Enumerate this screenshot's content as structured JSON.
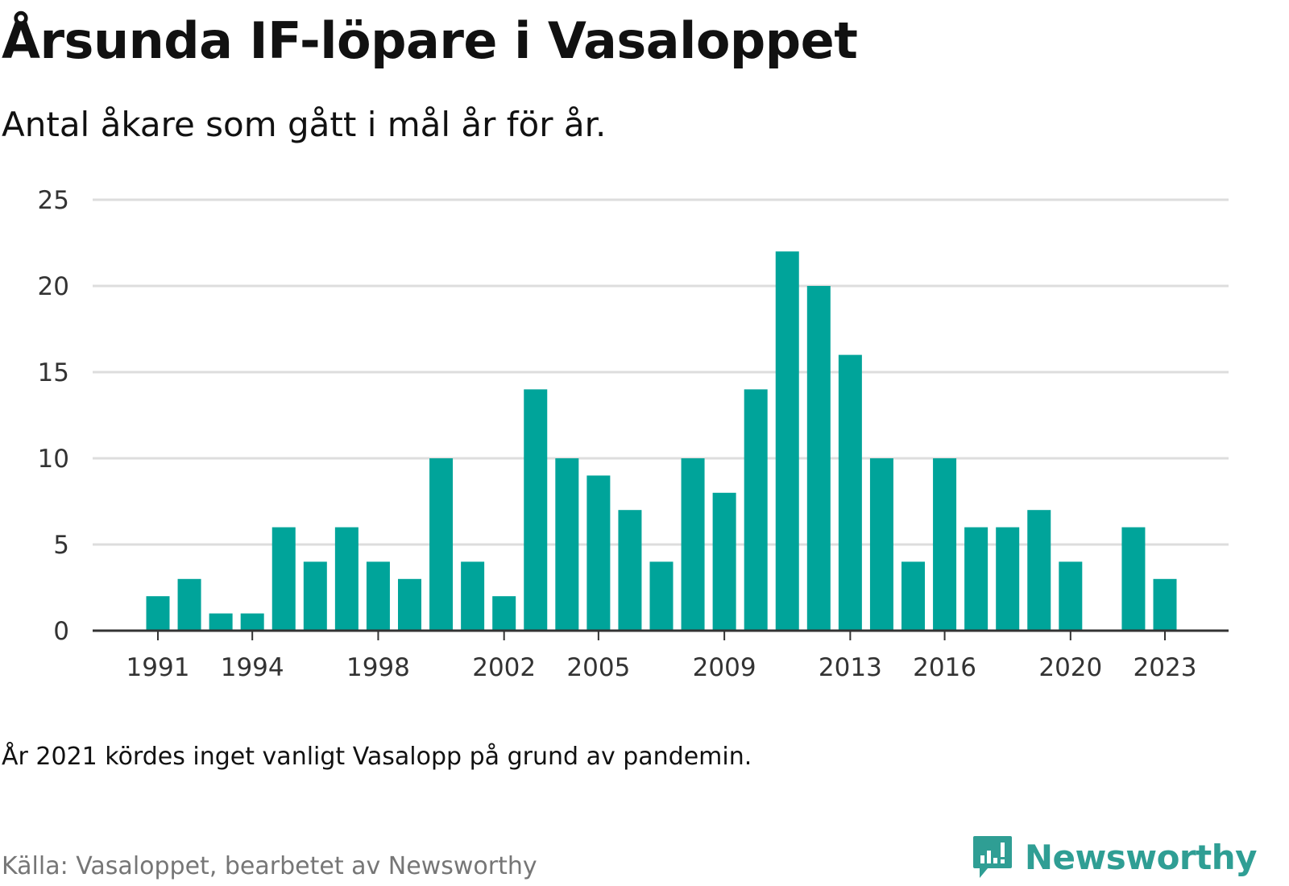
{
  "header": {
    "title": "Årsunda IF-löpare i Vasaloppet",
    "subtitle": "Antal åkare som gått i mål år för år."
  },
  "chart_data": {
    "type": "bar",
    "categories": [
      "1991",
      "1992",
      "1993",
      "1994",
      "1995",
      "1996",
      "1997",
      "1998",
      "1999",
      "2000",
      "2001",
      "2002",
      "2003",
      "2004",
      "2005",
      "2006",
      "2007",
      "2008",
      "2009",
      "2010",
      "2011",
      "2012",
      "2013",
      "2014",
      "2015",
      "2016",
      "2017",
      "2018",
      "2019",
      "2020",
      "2021",
      "2022",
      "2023"
    ],
    "values": [
      2,
      3,
      1,
      1,
      6,
      4,
      6,
      4,
      3,
      10,
      4,
      2,
      14,
      10,
      9,
      7,
      4,
      10,
      8,
      14,
      22,
      20,
      16,
      10,
      4,
      10,
      6,
      6,
      7,
      4,
      null,
      6,
      3
    ],
    "x_tick_labels": [
      "1991",
      "1994",
      "1998",
      "2002",
      "2005",
      "2009",
      "2013",
      "2016",
      "2020",
      "2023"
    ],
    "y_ticks": [
      0,
      5,
      10,
      15,
      20,
      25
    ],
    "ylim": [
      0,
      25
    ],
    "title": "Årsunda IF-löpare i Vasaloppet",
    "subtitle": "Antal åkare som gått i mål år för år.",
    "xlabel": "",
    "ylabel": "",
    "grid": true,
    "legend": "none",
    "bar_color": "#00a49a"
  },
  "footer": {
    "note": "År 2021 kördes inget vanligt Vasalopp på grund av pandemin.",
    "source": "Källa: Vasaloppet, bearbetet av Newsworthy",
    "brand": "Newsworthy",
    "brand_icon": "newsworthy-logo-icon",
    "brand_color": "#2f9e94"
  },
  "colors": {
    "grid": "#dddddd",
    "axis": "#333333",
    "text": "#111111",
    "muted": "#767676"
  }
}
